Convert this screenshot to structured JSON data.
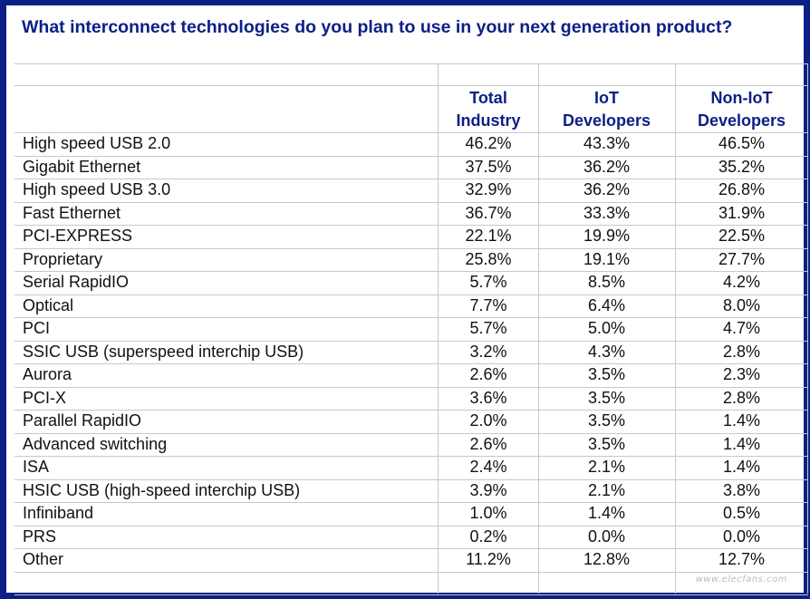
{
  "title": "What interconnect technologies do you plan to use in your next generation product?",
  "columns": {
    "total": {
      "line1": "Total",
      "line2": "Industry"
    },
    "iot": {
      "line1": "IoT",
      "line2": "Developers"
    },
    "noniot": {
      "line1": "Non-IoT",
      "line2": "Developers"
    }
  },
  "rows": [
    {
      "label": "High speed USB 2.0",
      "total": "46.2%",
      "iot": "43.3%",
      "noniot": "46.5%"
    },
    {
      "label": "Gigabit Ethernet",
      "total": "37.5%",
      "iot": "36.2%",
      "noniot": "35.2%"
    },
    {
      "label": "High speed USB 3.0",
      "total": "32.9%",
      "iot": "36.2%",
      "noniot": "26.8%"
    },
    {
      "label": "Fast Ethernet",
      "total": "36.7%",
      "iot": "33.3%",
      "noniot": "31.9%"
    },
    {
      "label": "PCI-EXPRESS",
      "total": "22.1%",
      "iot": "19.9%",
      "noniot": "22.5%"
    },
    {
      "label": "Proprietary",
      "total": "25.8%",
      "iot": "19.1%",
      "noniot": "27.7%"
    },
    {
      "label": "Serial RapidIO",
      "total": "5.7%",
      "iot": "8.5%",
      "noniot": "4.2%"
    },
    {
      "label": "Optical",
      "total": "7.7%",
      "iot": "6.4%",
      "noniot": "8.0%"
    },
    {
      "label": "PCI",
      "total": "5.7%",
      "iot": "5.0%",
      "noniot": "4.7%"
    },
    {
      "label": "SSIC USB (superspeed interchip USB)",
      "total": "3.2%",
      "iot": "4.3%",
      "noniot": "2.8%"
    },
    {
      "label": "Aurora",
      "total": "2.6%",
      "iot": "3.5%",
      "noniot": "2.3%"
    },
    {
      "label": "PCI-X",
      "total": "3.6%",
      "iot": "3.5%",
      "noniot": "2.8%"
    },
    {
      "label": "Parallel RapidIO",
      "total": "2.0%",
      "iot": "3.5%",
      "noniot": "1.4%"
    },
    {
      "label": "Advanced switching",
      "total": "2.6%",
      "iot": "3.5%",
      "noniot": "1.4%"
    },
    {
      "label": "ISA",
      "total": "2.4%",
      "iot": "2.1%",
      "noniot": "1.4%"
    },
    {
      "label": "HSIC USB (high-speed interchip USB)",
      "total": "3.9%",
      "iot": "2.1%",
      "noniot": "3.8%"
    },
    {
      "label": "Infiniband",
      "total": "1.0%",
      "iot": "1.4%",
      "noniot": "0.5%"
    },
    {
      "label": "PRS",
      "total": "0.2%",
      "iot": "0.0%",
      "noniot": "0.0%"
    },
    {
      "label": "Other",
      "total": "11.2%",
      "iot": "12.8%",
      "noniot": "12.7%"
    }
  ],
  "watermark": "www.elecfans.com",
  "colors": {
    "border": "#0b1f86",
    "title": "#0b1f86",
    "header": "#0b1f86",
    "gridline": "#c8c8c8",
    "text": "#111111"
  }
}
